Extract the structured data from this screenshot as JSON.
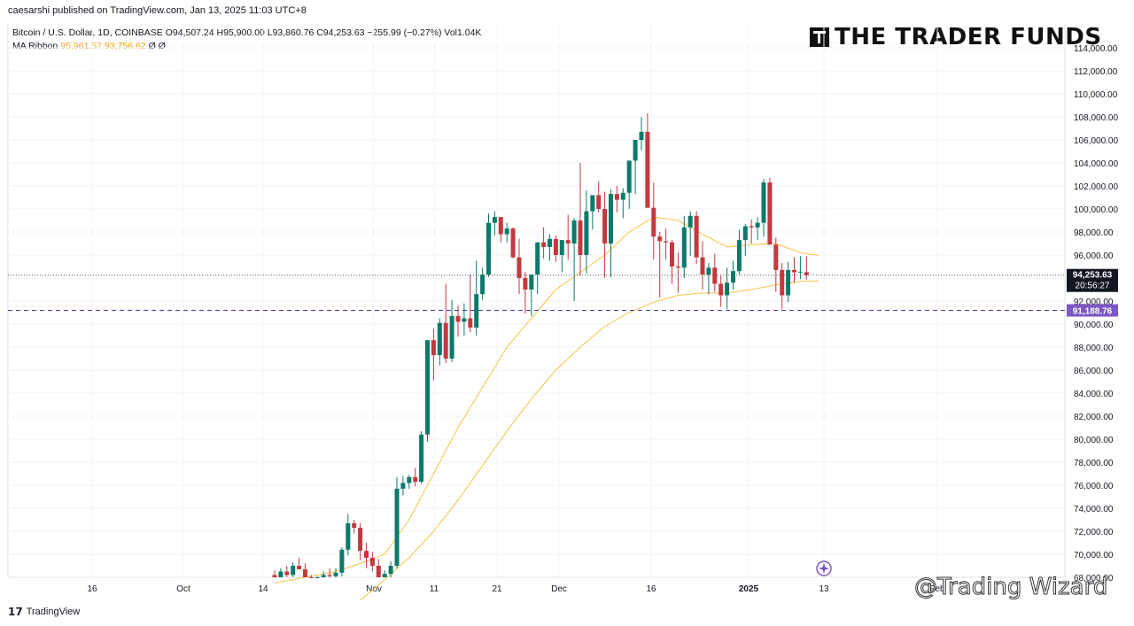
{
  "publisher": "caesarshi published on TradingView.com, Jan 13, 2025 11:03 UTC+8",
  "legend": {
    "symbol": "Bitcoin / U.S. Dollar, 1D, COINBASE",
    "ohlc": "O94,507.24 H95,900.00 L93,860.76 C94,253.63 −255.99 (−0.27%) Vol1.04K",
    "ma_label": "MA Ribbon",
    "ma1": "95,961.57",
    "ma2": "93,756.62",
    "ma_rest": "Ø Ø"
  },
  "brand": "THE TRADER FUNDS",
  "footer": "TradingView",
  "watermark": "@Trading Wizard",
  "colors": {
    "up": "#26a69a",
    "down": "#ef5350",
    "up_body": "#0b7a6a",
    "down_body": "#c2393f",
    "ma": "#f7c244",
    "accent": "#7e57c2"
  },
  "chart_data": {
    "type": "candlestick",
    "ylim": [
      66000,
      115000
    ],
    "y_ticks": [
      "114,000.00",
      "112,000.00",
      "110,000.00",
      "108,000.00",
      "106,000.00",
      "104,000.00",
      "102,000.00",
      "100,000.00",
      "98,000.00",
      "96,000.00",
      "94,000.00",
      "92,000.00",
      "90,000.00",
      "88,000.00",
      "86,000.00",
      "84,000.00",
      "82,000.00",
      "80,000.00",
      "78,000.00",
      "76,000.00",
      "74,000.00",
      "72,000.00",
      "70,000.00",
      "68,000.00"
    ],
    "x_ticks": [
      "16",
      "Oct",
      "14",
      "Nov",
      "11",
      "21",
      "Dec",
      "16",
      "2025",
      "13",
      "Feb"
    ],
    "last_price": "94,253.63",
    "countdown": "20:56:27",
    "hline_label": "91,188.76",
    "hline_value": 91188.76,
    "candles_ohlc": [
      [
        68200,
        68600,
        67400,
        67800
      ],
      [
        67800,
        68800,
        67600,
        68500
      ],
      [
        68500,
        69000,
        67700,
        68200
      ],
      [
        68200,
        69300,
        68000,
        69000
      ],
      [
        69000,
        69700,
        68800,
        68700
      ],
      [
        68700,
        69200,
        67600,
        67800
      ],
      [
        67800,
        68200,
        67300,
        67500
      ],
      [
        67500,
        68100,
        66800,
        67800
      ],
      [
        67800,
        68500,
        67300,
        68200
      ],
      [
        68200,
        68800,
        67600,
        68100
      ],
      [
        68100,
        68800,
        67700,
        68400
      ],
      [
        68400,
        70600,
        68100,
        70400
      ],
      [
        70400,
        73500,
        69900,
        72700
      ],
      [
        72700,
        73000,
        71800,
        72300
      ],
      [
        72300,
        72700,
        69500,
        70300
      ],
      [
        70300,
        71000,
        68800,
        69700
      ],
      [
        69700,
        70200,
        68500,
        69000
      ],
      [
        69000,
        69600,
        67500,
        68000
      ],
      [
        68000,
        68600,
        67400,
        68300
      ],
      [
        68300,
        69400,
        67800,
        69000
      ],
      [
        69000,
        76700,
        68800,
        75700
      ],
      [
        75700,
        76800,
        75100,
        76200
      ],
      [
        76200,
        76900,
        75700,
        76700
      ],
      [
        76700,
        77500,
        75900,
        76300
      ],
      [
        76300,
        80700,
        76100,
        80400
      ],
      [
        80400,
        88300,
        79800,
        88600
      ],
      [
        88600,
        89600,
        85100,
        87300
      ],
      [
        87300,
        90500,
        86400,
        90100
      ],
      [
        90100,
        93500,
        86600,
        87000
      ],
      [
        87000,
        92100,
        86700,
        90700
      ],
      [
        90700,
        91600,
        88900,
        90200
      ],
      [
        90200,
        91800,
        89000,
        90500
      ],
      [
        90500,
        94300,
        89300,
        89700
      ],
      [
        89700,
        95500,
        89000,
        92600
      ],
      [
        92600,
        94900,
        92100,
        94300
      ],
      [
        94300,
        99600,
        94100,
        98800
      ],
      [
        98800,
        99800,
        97700,
        99300
      ],
      [
        99300,
        99200,
        97100,
        97800
      ],
      [
        97800,
        98800,
        97100,
        98300
      ],
      [
        98300,
        98400,
        95700,
        95800
      ],
      [
        95800,
        97400,
        92600,
        94000
      ],
      [
        94000,
        94500,
        90900,
        93000
      ],
      [
        93000,
        93900,
        90700,
        94300
      ],
      [
        94300,
        96700,
        92600,
        97100
      ],
      [
        97100,
        98400,
        95700,
        96700
      ],
      [
        96700,
        97800,
        95500,
        97400
      ],
      [
        97400,
        97700,
        95400,
        96000
      ],
      [
        96000,
        97200,
        94500,
        97300
      ],
      [
        97300,
        99500,
        95600,
        97000
      ],
      [
        97000,
        99200,
        92000,
        99000
      ],
      [
        99000,
        104000,
        94200,
        96000
      ],
      [
        96000,
        101600,
        94400,
        99800
      ],
      [
        99800,
        100800,
        98200,
        101200
      ],
      [
        101200,
        102400,
        99700,
        100000
      ],
      [
        100000,
        101500,
        94000,
        97000
      ],
      [
        97000,
        101700,
        94100,
        101300
      ],
      [
        101300,
        102000,
        99700,
        100800
      ],
      [
        100800,
        101800,
        99200,
        101400
      ],
      [
        101400,
        103000,
        100000,
        104200
      ],
      [
        104200,
        105200,
        101300,
        106000
      ],
      [
        106000,
        108000,
        105100,
        106700
      ],
      [
        106700,
        108300,
        100700,
        100100
      ],
      [
        100100,
        102300,
        95600,
        97600
      ],
      [
        97600,
        98000,
        92300,
        97200
      ],
      [
        97200,
        98300,
        95600,
        97100
      ],
      [
        97100,
        97300,
        93500,
        95000
      ],
      [
        95000,
        96200,
        92700,
        94900
      ],
      [
        94900,
        99400,
        94000,
        98400
      ],
      [
        98400,
        99800,
        95900,
        99400
      ],
      [
        99400,
        99800,
        95200,
        95800
      ],
      [
        95800,
        97200,
        93000,
        94300
      ],
      [
        94300,
        95300,
        92600,
        94900
      ],
      [
        94900,
        96100,
        92800,
        93500
      ],
      [
        93500,
        94200,
        91500,
        92500
      ],
      [
        92500,
        94900,
        91300,
        93600
      ],
      [
        93600,
        95500,
        93000,
        94600
      ],
      [
        94600,
        98200,
        94300,
        97300
      ],
      [
        97300,
        98700,
        95900,
        98500
      ],
      [
        98500,
        99100,
        97000,
        98400
      ],
      [
        98400,
        99300,
        97300,
        98800
      ],
      [
        98800,
        102600,
        97600,
        102300
      ],
      [
        102300,
        102700,
        97200,
        96900
      ],
      [
        96900,
        97500,
        92800,
        94700
      ],
      [
        94700,
        95300,
        91300,
        92500
      ],
      [
        92500,
        95400,
        91900,
        94700
      ],
      [
        94700,
        95800,
        93600,
        94500
      ],
      [
        94500,
        95900,
        93900,
        94550
      ],
      [
        94507,
        95900,
        93861,
        94254
      ]
    ],
    "ma_fast": [
      [
        0,
        67500
      ],
      [
        4,
        67900
      ],
      [
        10,
        68500
      ],
      [
        14,
        69200
      ],
      [
        18,
        70000
      ],
      [
        22,
        73000
      ],
      [
        26,
        77000
      ],
      [
        30,
        81000
      ],
      [
        34,
        84500
      ],
      [
        38,
        88000
      ],
      [
        42,
        90500
      ],
      [
        46,
        93000
      ],
      [
        50,
        94500
      ],
      [
        54,
        96000
      ],
      [
        58,
        98000
      ],
      [
        62,
        99300
      ],
      [
        66,
        99000
      ],
      [
        70,
        97800
      ],
      [
        74,
        96700
      ],
      [
        78,
        96900
      ],
      [
        82,
        97000
      ],
      [
        86,
        96200
      ],
      [
        89,
        95960
      ]
    ],
    "ma_slow": [
      [
        14,
        66000
      ],
      [
        18,
        67800
      ],
      [
        22,
        69700
      ],
      [
        26,
        72000
      ],
      [
        30,
        74700
      ],
      [
        34,
        77700
      ],
      [
        38,
        80700
      ],
      [
        42,
        83500
      ],
      [
        46,
        86000
      ],
      [
        50,
        88000
      ],
      [
        54,
        89800
      ],
      [
        58,
        91000
      ],
      [
        62,
        91900
      ],
      [
        66,
        92500
      ],
      [
        70,
        92700
      ],
      [
        74,
        92700
      ],
      [
        78,
        93000
      ],
      [
        82,
        93400
      ],
      [
        86,
        93700
      ],
      [
        89,
        93760
      ]
    ]
  }
}
